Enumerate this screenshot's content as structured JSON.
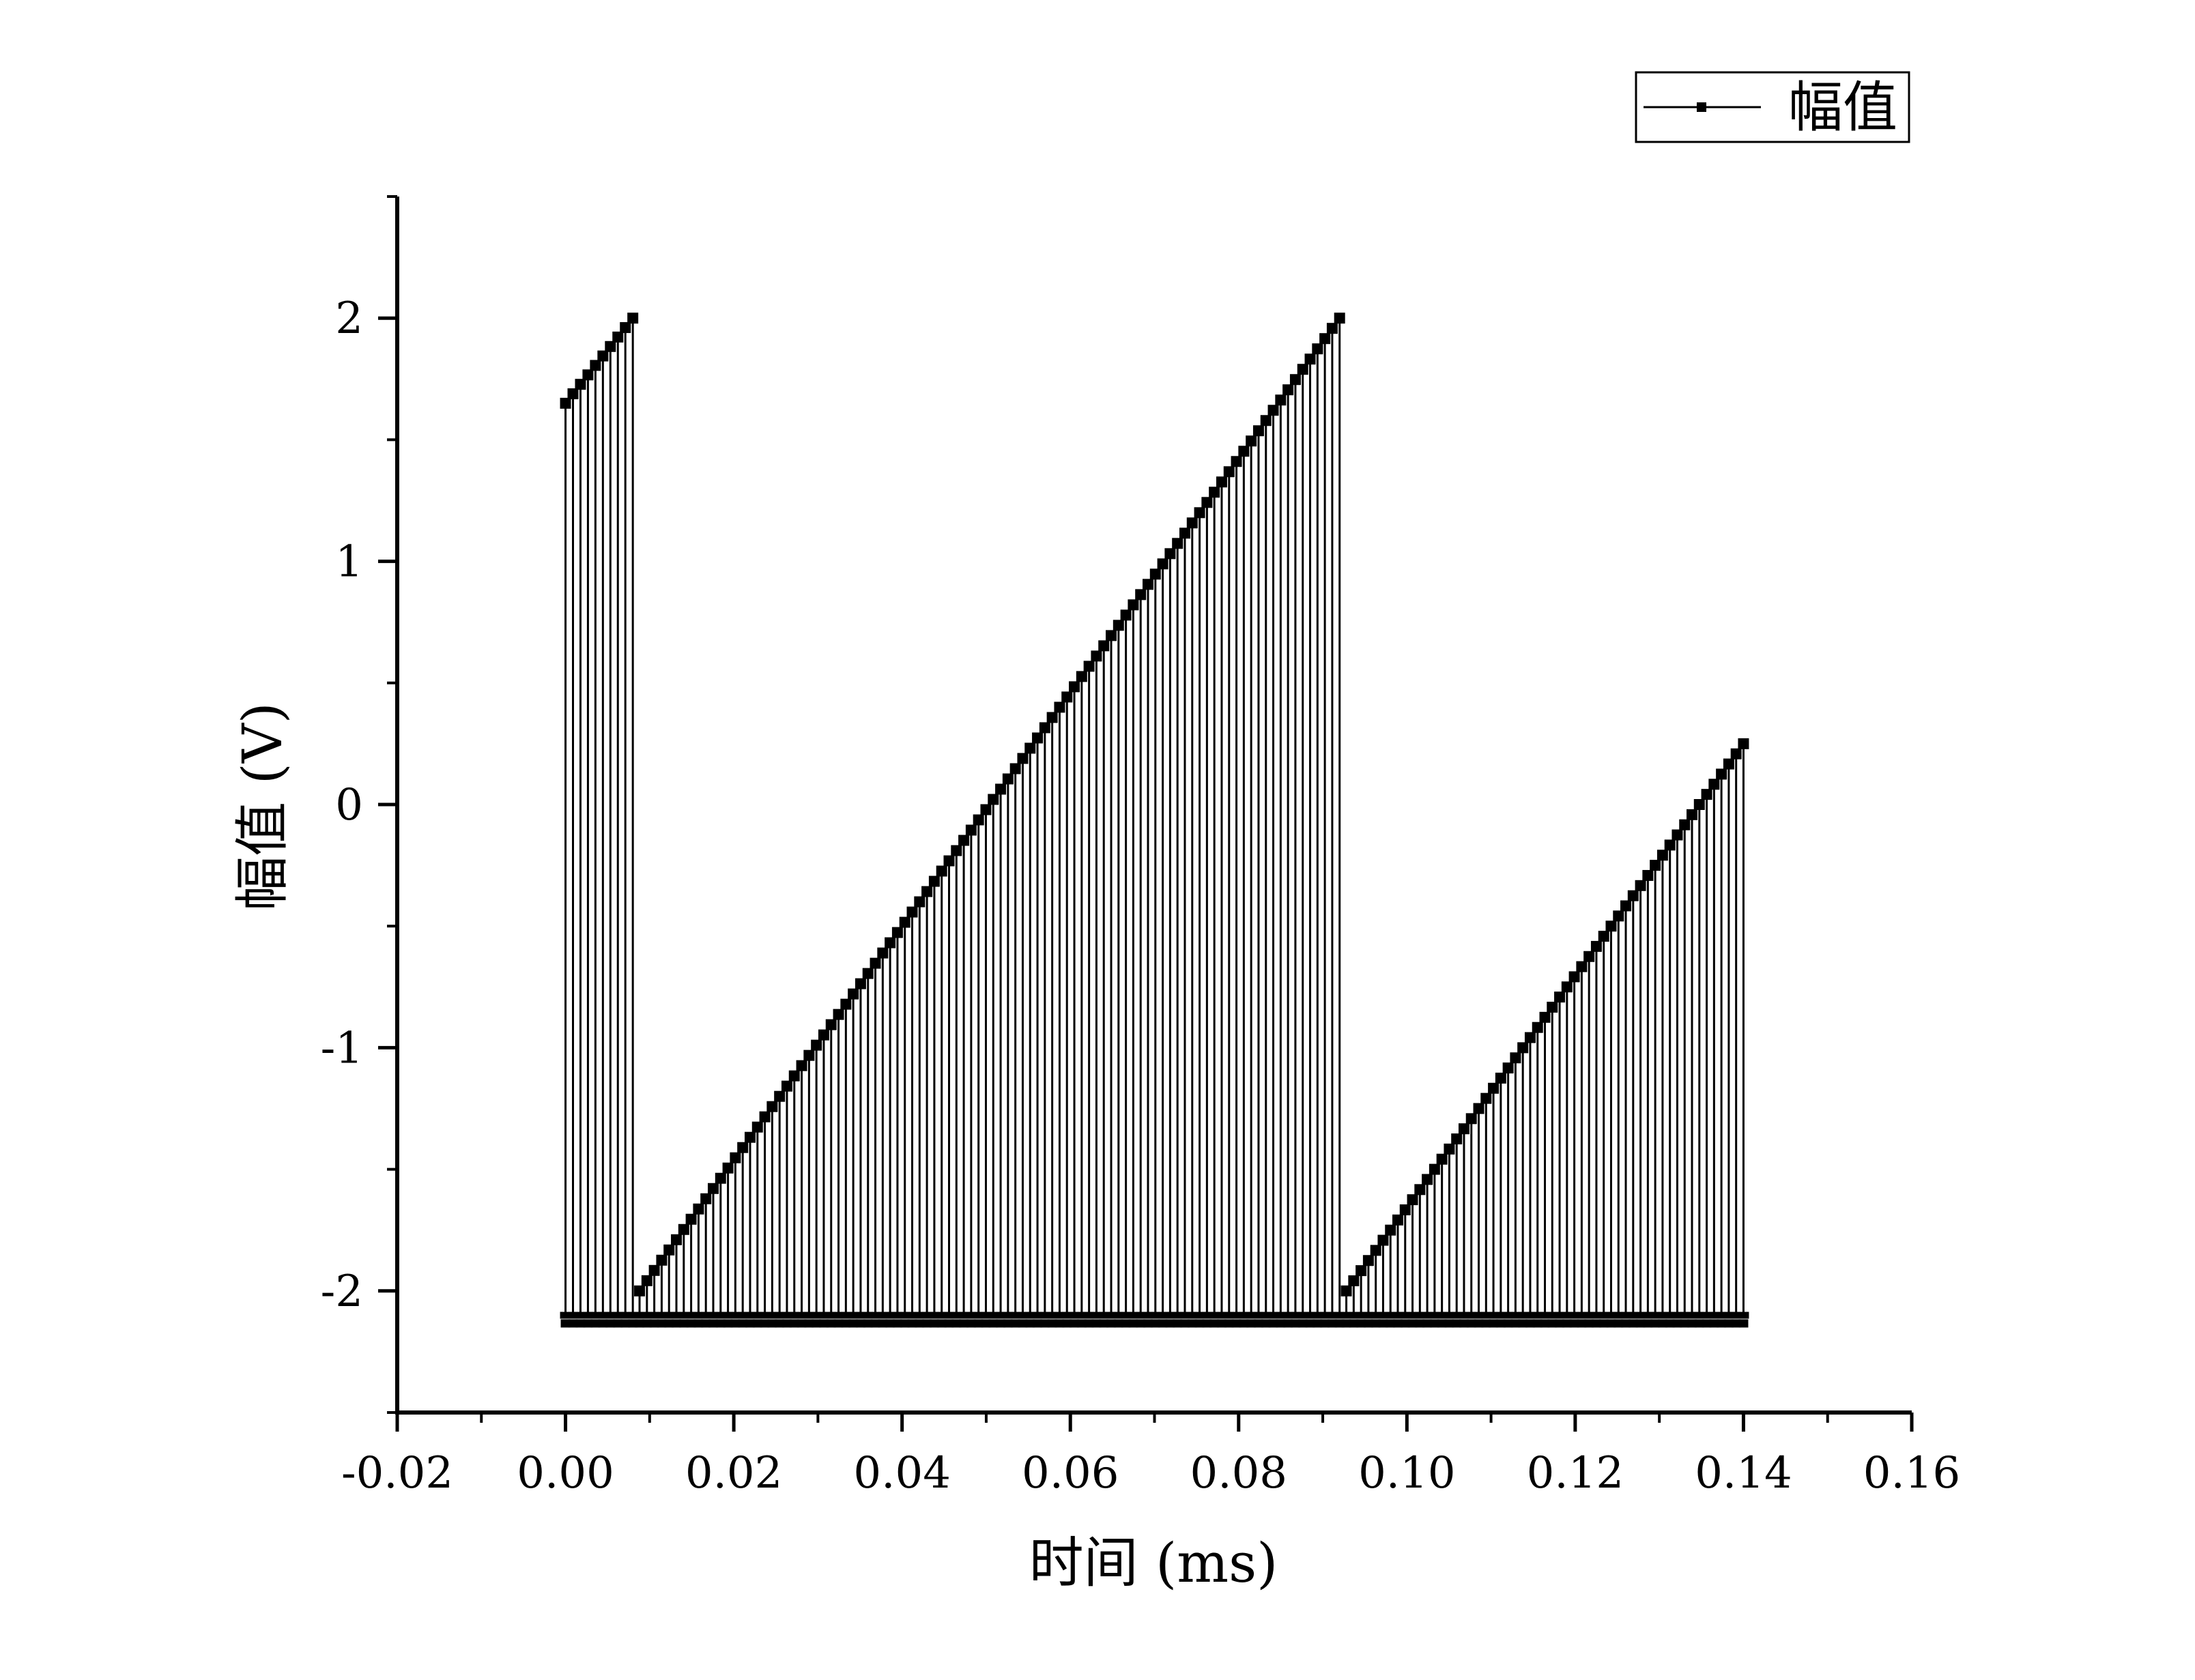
{
  "chart_data": {
    "type": "line",
    "title": "",
    "xlabel": "时间 (ms)",
    "ylabel": "幅值 (V)",
    "xlim": [
      -0.02,
      0.16
    ],
    "ylim": [
      -2.5,
      2.5
    ],
    "xticks": [
      -0.02,
      0.0,
      0.02,
      0.04,
      0.06,
      0.08,
      0.1,
      0.12,
      0.14,
      0.16
    ],
    "xtick_labels": [
      "-0.02",
      "0.00",
      "0.02",
      "0.04",
      "0.06",
      "0.08",
      "0.10",
      "0.12",
      "0.14",
      "0.16"
    ],
    "yticks": [
      -2,
      -1,
      0,
      1,
      2
    ],
    "ytick_labels": [
      "-2",
      "-1",
      "0",
      "1",
      "2"
    ],
    "grid": false,
    "legend": {
      "position": "top-right",
      "entries": [
        "幅值"
      ]
    },
    "series": [
      {
        "name": "幅值",
        "color": "#000000",
        "marker": "square",
        "low": -2.1,
        "segments": [
          {
            "x_start": 0.0,
            "x_end": 0.008,
            "y_start": 1.65,
            "y_end": 2.0,
            "pulses": 10
          },
          {
            "x_start": 0.0088,
            "x_end": 0.092,
            "y_start": -2.0,
            "y_end": 2.0,
            "pulses": 96
          },
          {
            "x_start": 0.0928,
            "x_end": 0.14,
            "y_start": -2.0,
            "y_end": 0.25,
            "pulses": 55
          }
        ]
      }
    ]
  },
  "legend_label": "幅值"
}
